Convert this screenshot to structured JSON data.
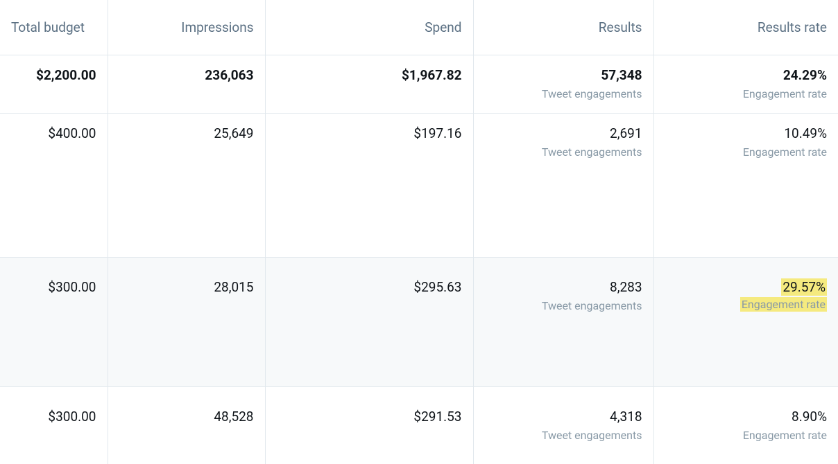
{
  "columns": {
    "budget": "Total budget",
    "impressions": "Impressions",
    "spend": "Spend",
    "results": "Results",
    "rate": "Results rate"
  },
  "sublabels": {
    "engagements": "Tweet engagements",
    "engagement_rate": "Engagement rate"
  },
  "rows": [
    {
      "budget": "$2,200.00",
      "impressions": "236,063",
      "spend": "$1,967.82",
      "results": "57,348",
      "rate": "24.29%",
      "bold": true
    },
    {
      "budget": "$400.00",
      "impressions": "25,649",
      "spend": "$197.16",
      "results": "2,691",
      "rate": "10.49%",
      "bold": false
    },
    {
      "budget": "$300.00",
      "impressions": "28,015",
      "spend": "$295.63",
      "results": "8,283",
      "rate": "29.57%",
      "bold": false,
      "alt": true,
      "highlight_rate": true
    },
    {
      "budget": "$300.00",
      "impressions": "48,528",
      "spend": "$291.53",
      "results": "4,318",
      "rate": "8.90%",
      "bold": false
    }
  ],
  "colors": {
    "text_primary": "#0f1419",
    "text_secondary": "#5b7083",
    "text_muted": "#8899a6",
    "border": "#e1e8ed",
    "alt_bg": "#f7f9fa",
    "highlight": "#f5ea7f",
    "background": "#ffffff"
  }
}
